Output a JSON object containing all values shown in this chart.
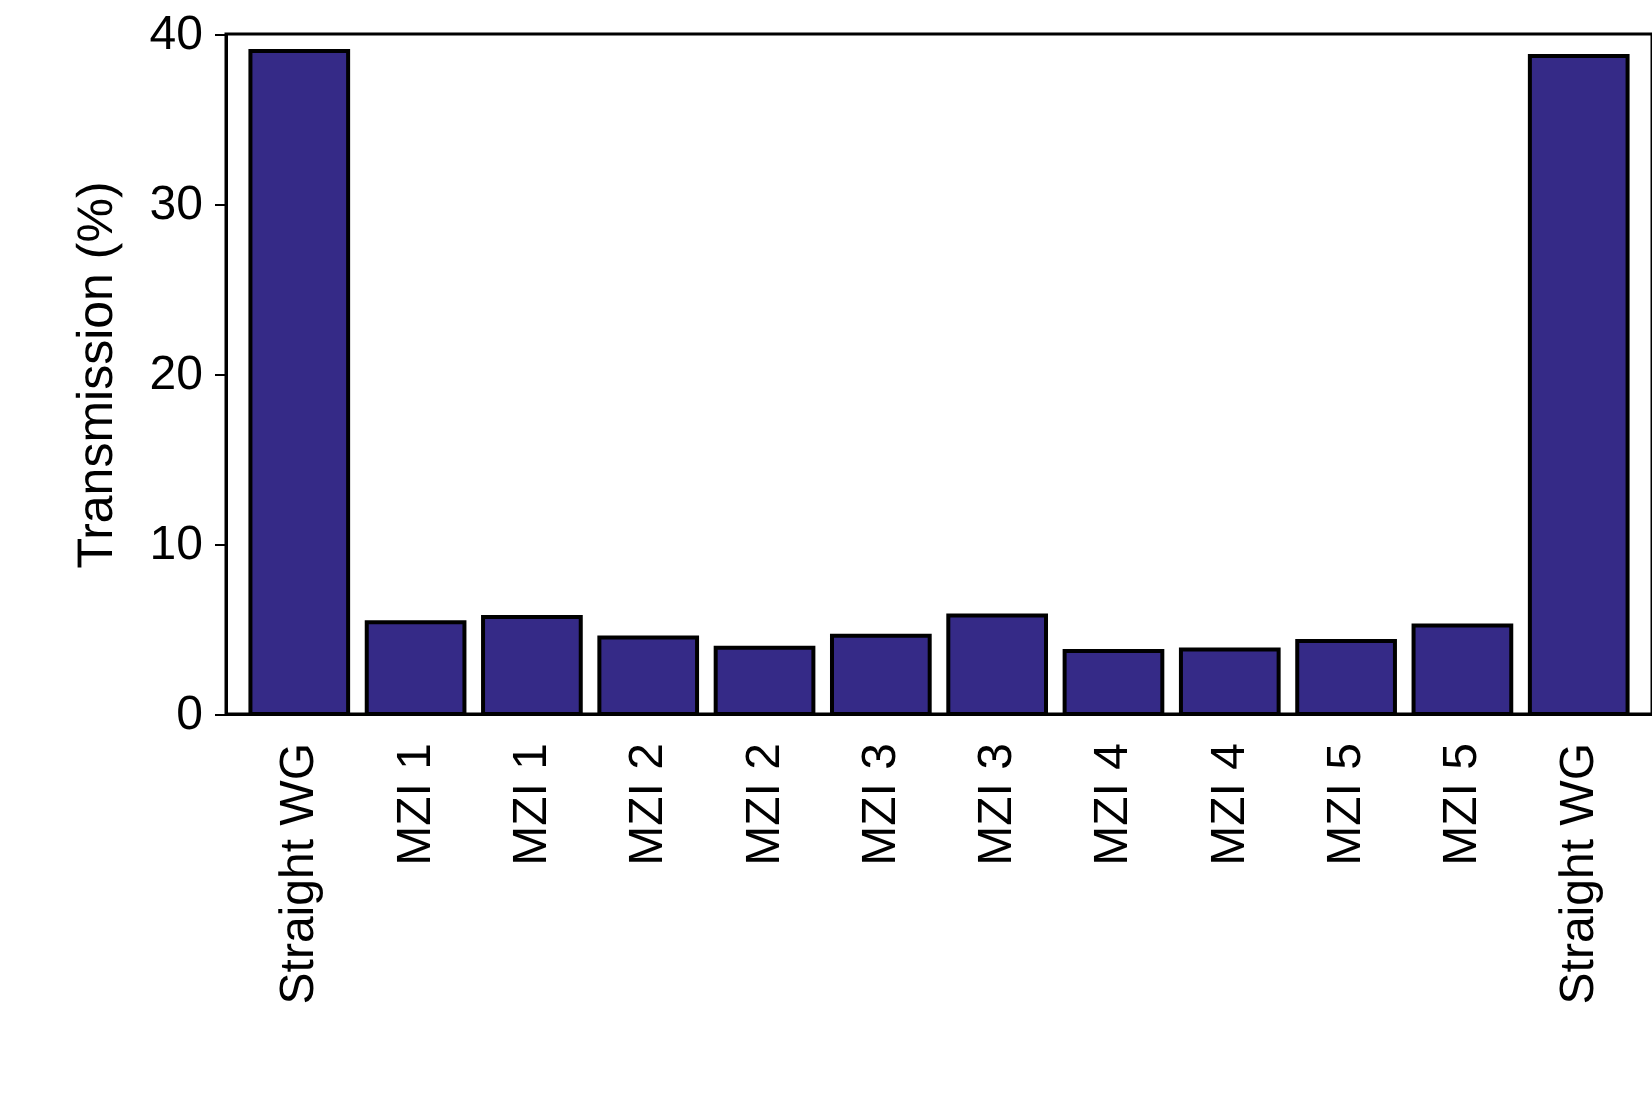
{
  "chart_data": {
    "type": "bar",
    "ylabel": "Transmission (%)",
    "categories": [
      "Straight WG",
      "MZI 1",
      "MZI 1",
      "MZI 2",
      "MZI 2",
      "MZI 3",
      "MZI 3",
      "MZI 4",
      "MZI 4",
      "MZI 5",
      "MZI 5",
      "Straight WG"
    ],
    "values": [
      39.0,
      5.4,
      5.7,
      4.5,
      3.9,
      4.6,
      5.8,
      3.7,
      3.8,
      4.3,
      5.2,
      38.7
    ],
    "color": "#352a87",
    "ylim": [
      0,
      40
    ],
    "yticks": [
      0,
      10,
      20,
      30,
      40
    ],
    "grid": false
  }
}
